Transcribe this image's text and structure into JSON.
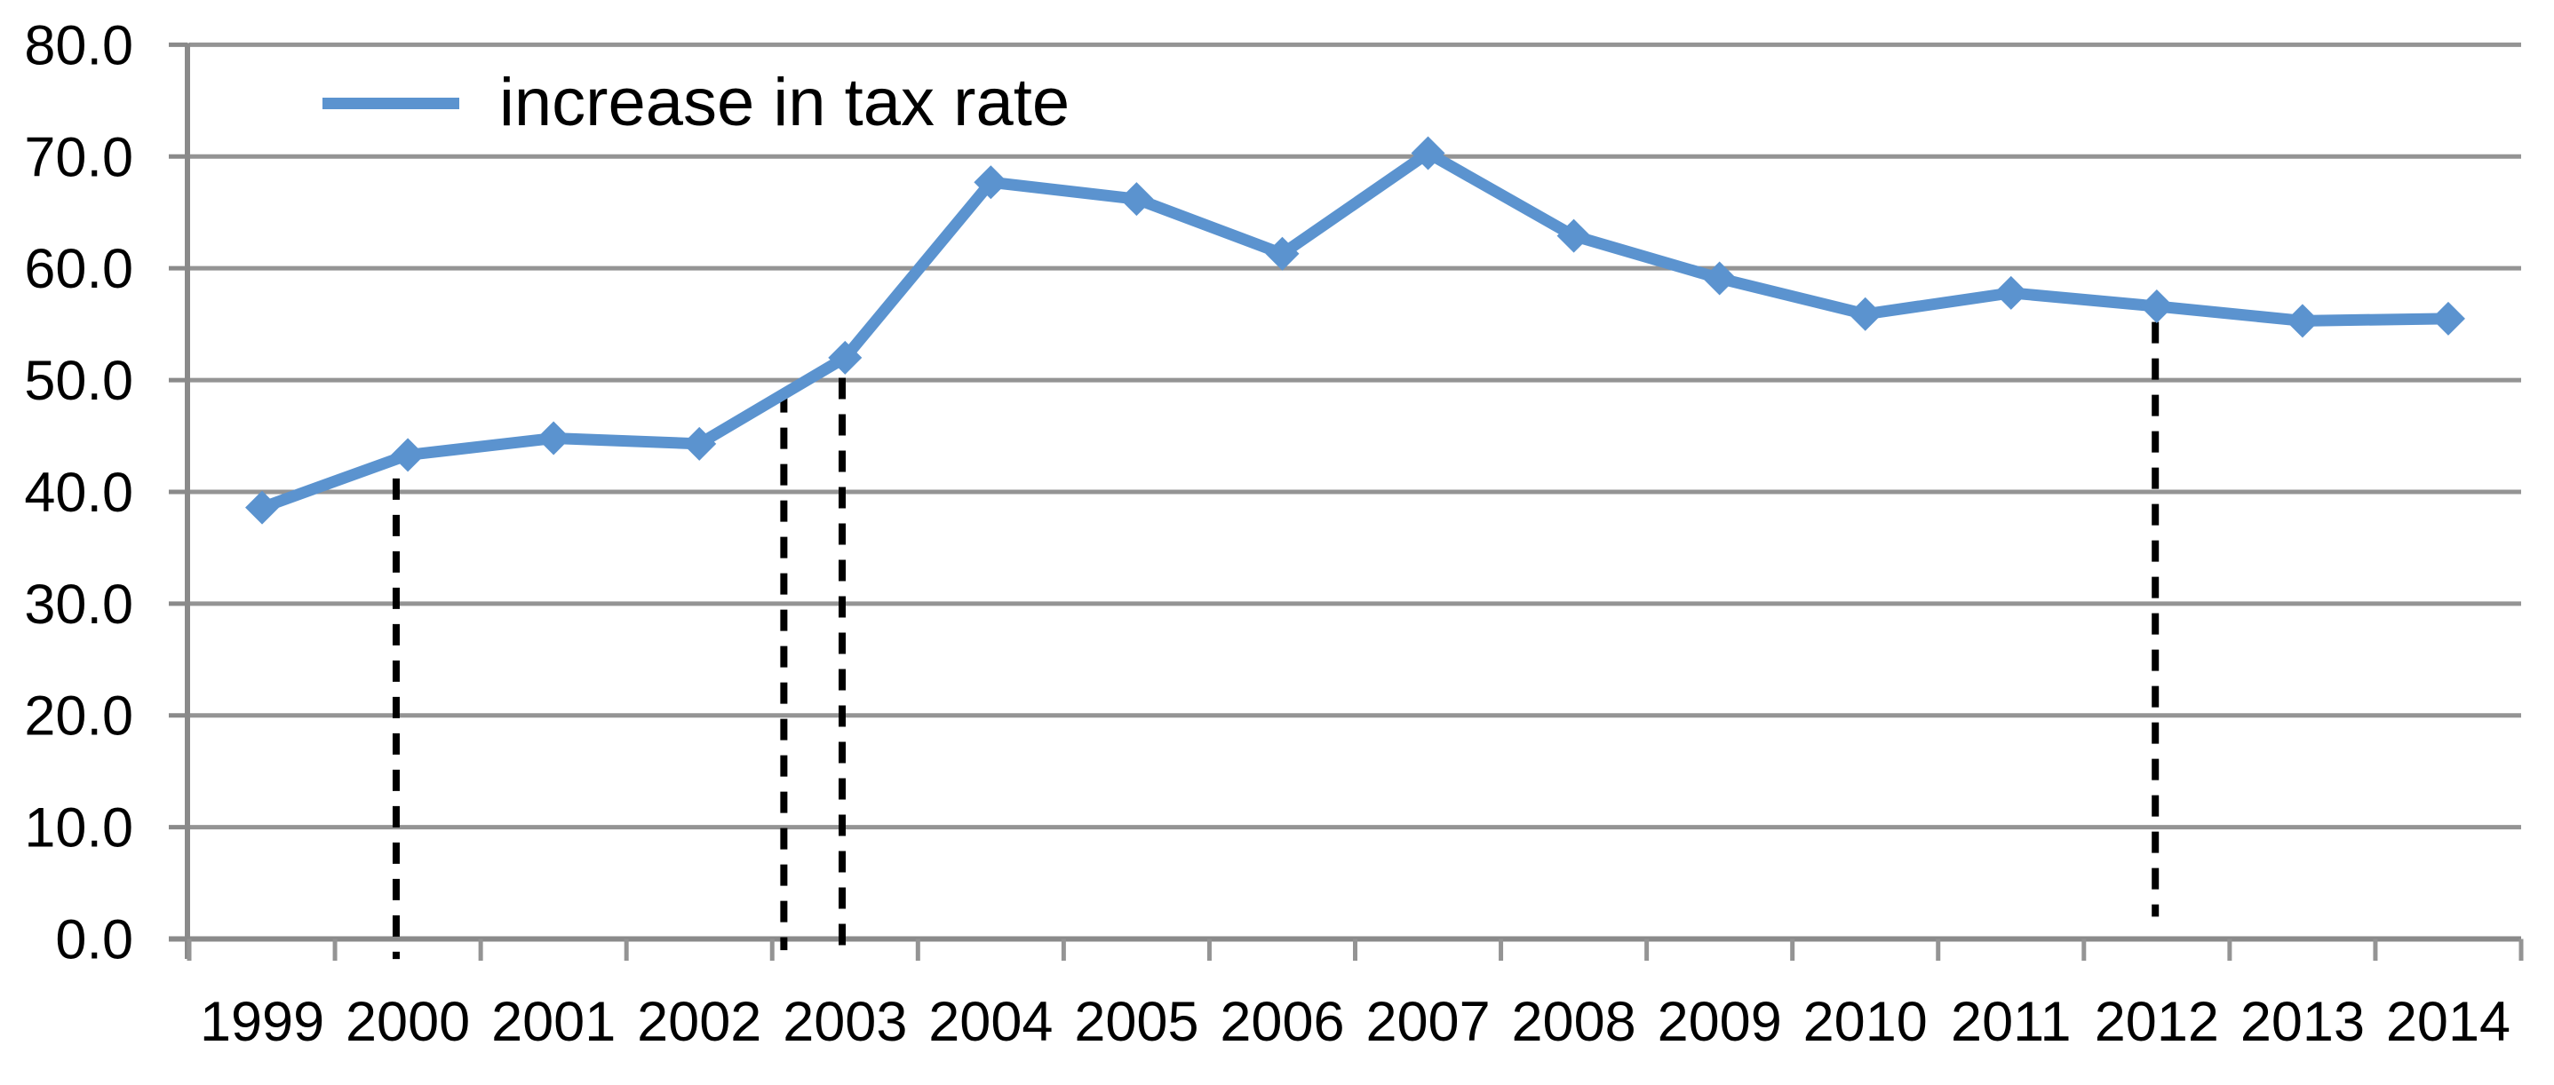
{
  "chart_data": {
    "type": "line",
    "title": "",
    "xlabel": "",
    "ylabel": "",
    "legend": {
      "position": "top-left-inside",
      "entries": [
        "increase in tax rate"
      ]
    },
    "categories": [
      "1999",
      "2000",
      "2001",
      "2002",
      "2003",
      "2004",
      "2005",
      "2006",
      "2007",
      "2008",
      "2009",
      "2010",
      "2011",
      "2012",
      "2013",
      "2014"
    ],
    "series": [
      {
        "name": "increase in tax rate",
        "color": "#5B93CF",
        "marker": "diamond",
        "values": [
          38.6,
          43.3,
          44.8,
          44.3,
          52.0,
          67.7,
          66.2,
          61.3,
          70.3,
          62.9,
          59.1,
          55.9,
          57.8,
          56.6,
          55.3,
          55.5
        ]
      }
    ],
    "ylim": [
      0,
      80
    ],
    "ytick_step": 10,
    "ytick_labels": [
      "0.0",
      "10.0",
      "20.0",
      "30.0",
      "40.0",
      "50.0",
      "60.0",
      "70.0",
      "80.0"
    ],
    "grid": true,
    "annotations": {
      "vlines": [
        {
          "near_year": "2000",
          "x_index": 0.92,
          "y_top": 41.2,
          "y_bottom": -1.8,
          "style": "dashed",
          "color": "#000000"
        },
        {
          "near_year": "2002-2003",
          "x_index": 3.58,
          "y_top": 49.0,
          "y_bottom": -1.0,
          "style": "dashed",
          "color": "#000000"
        },
        {
          "near_year": "2003",
          "x_index": 3.98,
          "y_top": 50.2,
          "y_bottom": -0.9,
          "style": "dashed",
          "color": "#000000"
        },
        {
          "near_year": "2012",
          "x_index": 12.99,
          "y_top": 55.2,
          "y_bottom": 2.0,
          "style": "dashed",
          "color": "#000000"
        }
      ]
    },
    "colors": {
      "series": "#5B93CF",
      "gridline": "#949494",
      "axis": "#8A8A8A",
      "vline": "#000000",
      "text": "#000000",
      "background": "#FFFFFF"
    }
  }
}
